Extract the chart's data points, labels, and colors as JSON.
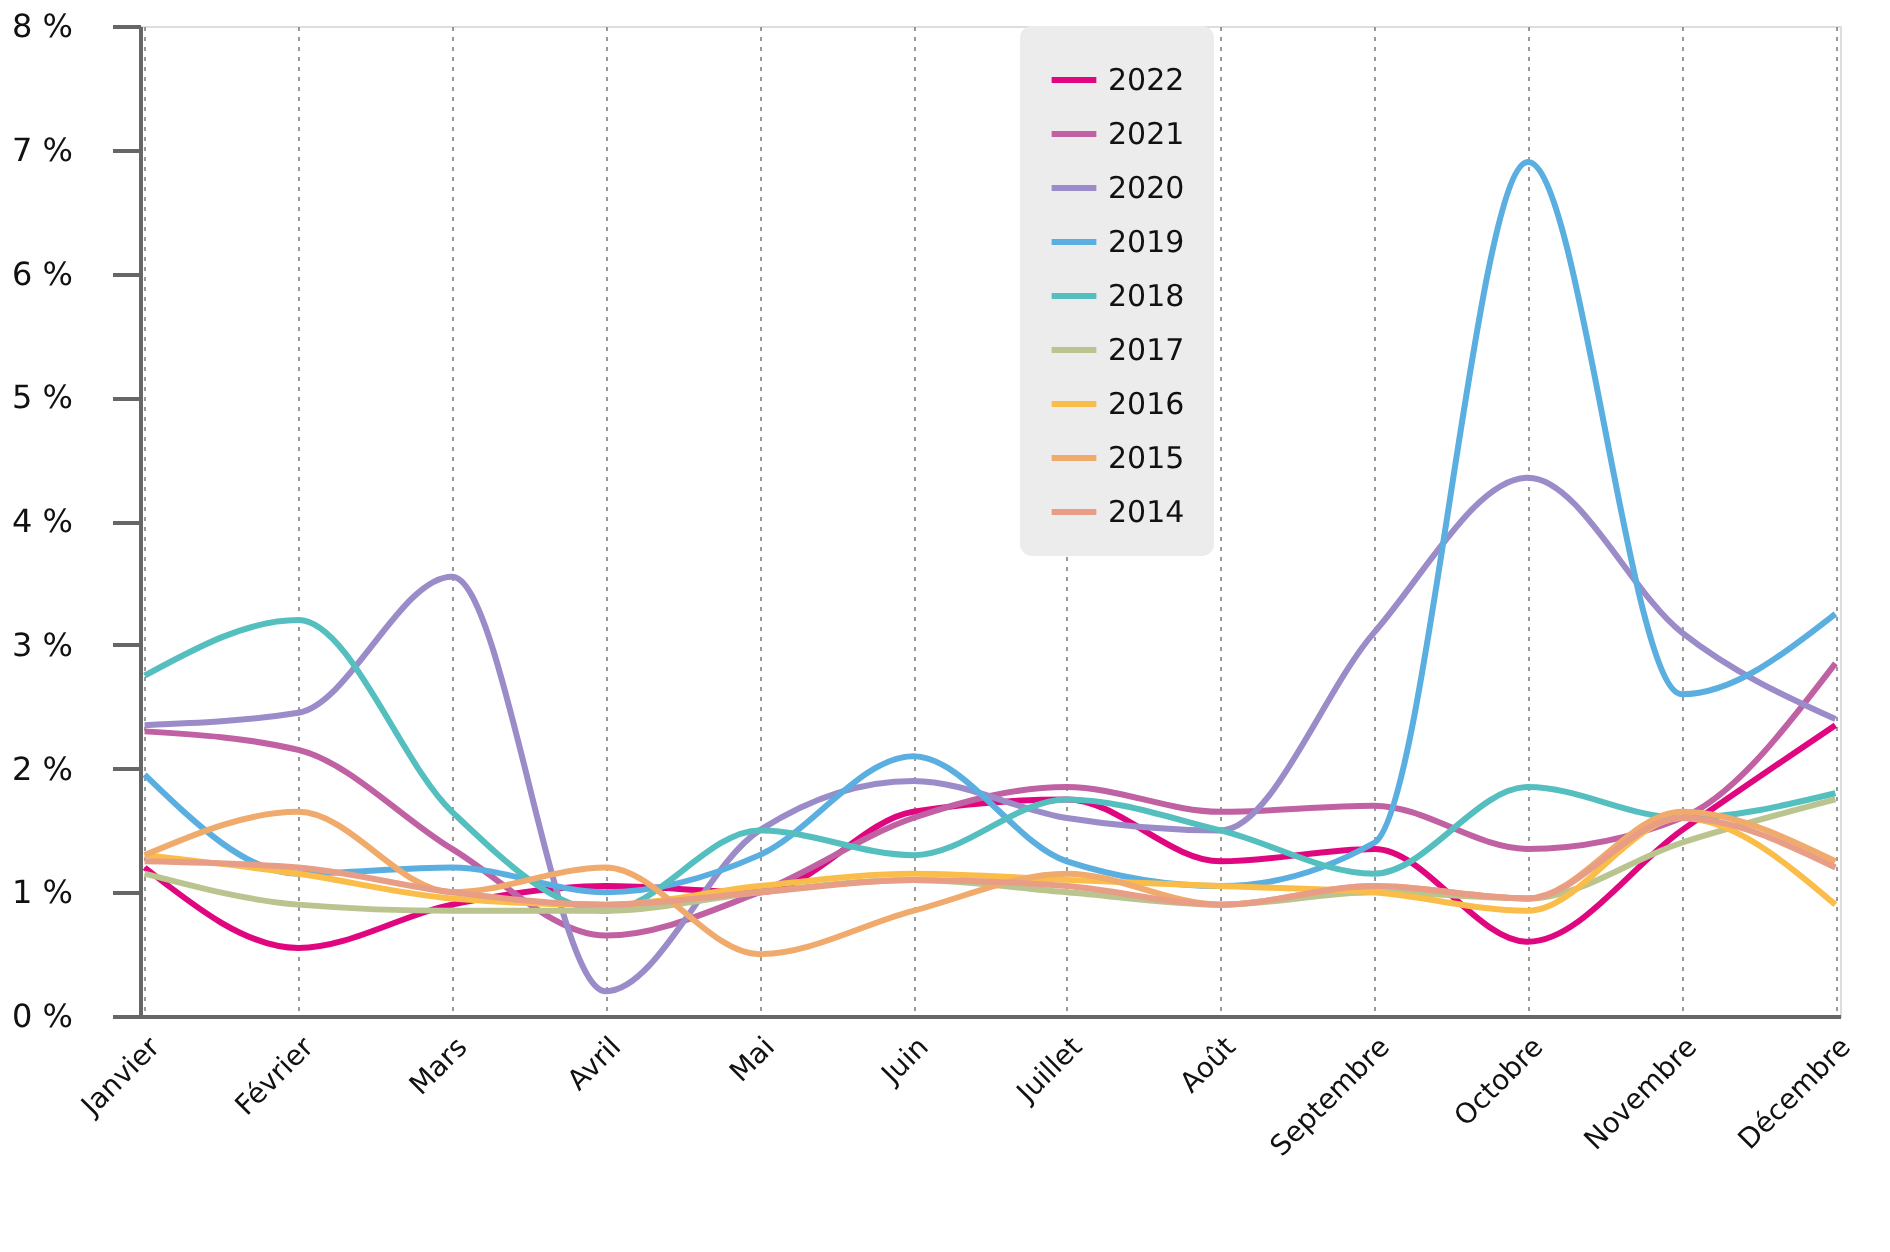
{
  "chart_data": {
    "type": "line",
    "categories": [
      "Janvier",
      "Février",
      "Mars",
      "Avril",
      "Mai",
      "Juin",
      "Juillet",
      "Août",
      "Septembre",
      "Octobre",
      "Novembre",
      "Décembre"
    ],
    "series": [
      {
        "name": "2022",
        "color": "#e0067f",
        "values": [
          1.2,
          0.55,
          0.9,
          1.05,
          1.0,
          1.65,
          1.75,
          1.25,
          1.35,
          0.6,
          1.5,
          2.35
        ]
      },
      {
        "name": "2021",
        "color": "#c061a3",
        "values": [
          2.3,
          2.15,
          1.35,
          0.65,
          1.0,
          1.6,
          1.85,
          1.65,
          1.7,
          1.35,
          1.6,
          2.85
        ]
      },
      {
        "name": "2020",
        "color": "#9b8bc8",
        "values": [
          2.35,
          2.45,
          3.55,
          0.2,
          1.5,
          1.9,
          1.6,
          1.5,
          3.1,
          4.35,
          3.1,
          2.4
        ]
      },
      {
        "name": "2019",
        "color": "#5aafe0",
        "values": [
          1.95,
          1.15,
          1.2,
          1.0,
          1.3,
          2.1,
          1.25,
          1.05,
          1.4,
          6.9,
          2.6,
          3.25
        ]
      },
      {
        "name": "2018",
        "color": "#55bfc0",
        "values": [
          2.75,
          3.2,
          1.65,
          0.85,
          1.5,
          1.3,
          1.75,
          1.5,
          1.15,
          1.85,
          1.6,
          1.8
        ]
      },
      {
        "name": "2017",
        "color": "#b9c48e",
        "values": [
          1.15,
          0.9,
          0.85,
          0.85,
          1.0,
          1.1,
          1.0,
          0.9,
          1.0,
          0.95,
          1.4,
          1.75
        ]
      },
      {
        "name": "2016",
        "color": "#fbbd4a",
        "values": [
          1.3,
          1.15,
          0.95,
          0.9,
          1.05,
          1.15,
          1.1,
          1.05,
          1.0,
          0.85,
          1.6,
          0.9
        ]
      },
      {
        "name": "2015",
        "color": "#f0aa6c",
        "values": [
          1.3,
          1.65,
          1.0,
          1.2,
          0.5,
          0.85,
          1.15,
          0.9,
          1.05,
          0.95,
          1.65,
          1.25
        ]
      },
      {
        "name": "2014",
        "color": "#e89d86",
        "values": [
          1.25,
          1.2,
          1.0,
          0.9,
          1.0,
          1.1,
          1.05,
          0.9,
          1.05,
          0.95,
          1.6,
          1.2
        ]
      }
    ],
    "ylim": [
      0,
      8
    ],
    "yticks": [
      {
        "value": 0,
        "label": "0 %"
      },
      {
        "value": 1,
        "label": "1 %"
      },
      {
        "value": 2,
        "label": "2 %"
      },
      {
        "value": 3,
        "label": "3 %"
      },
      {
        "value": 4,
        "label": "4 %"
      },
      {
        "value": 5,
        "label": "5 %"
      },
      {
        "value": 6,
        "label": "6 %"
      },
      {
        "value": 7,
        "label": "7 %"
      },
      {
        "value": 8,
        "label": "8 %"
      }
    ],
    "grid": "x",
    "legend": "top",
    "marker": "none",
    "line_style": "solid"
  }
}
